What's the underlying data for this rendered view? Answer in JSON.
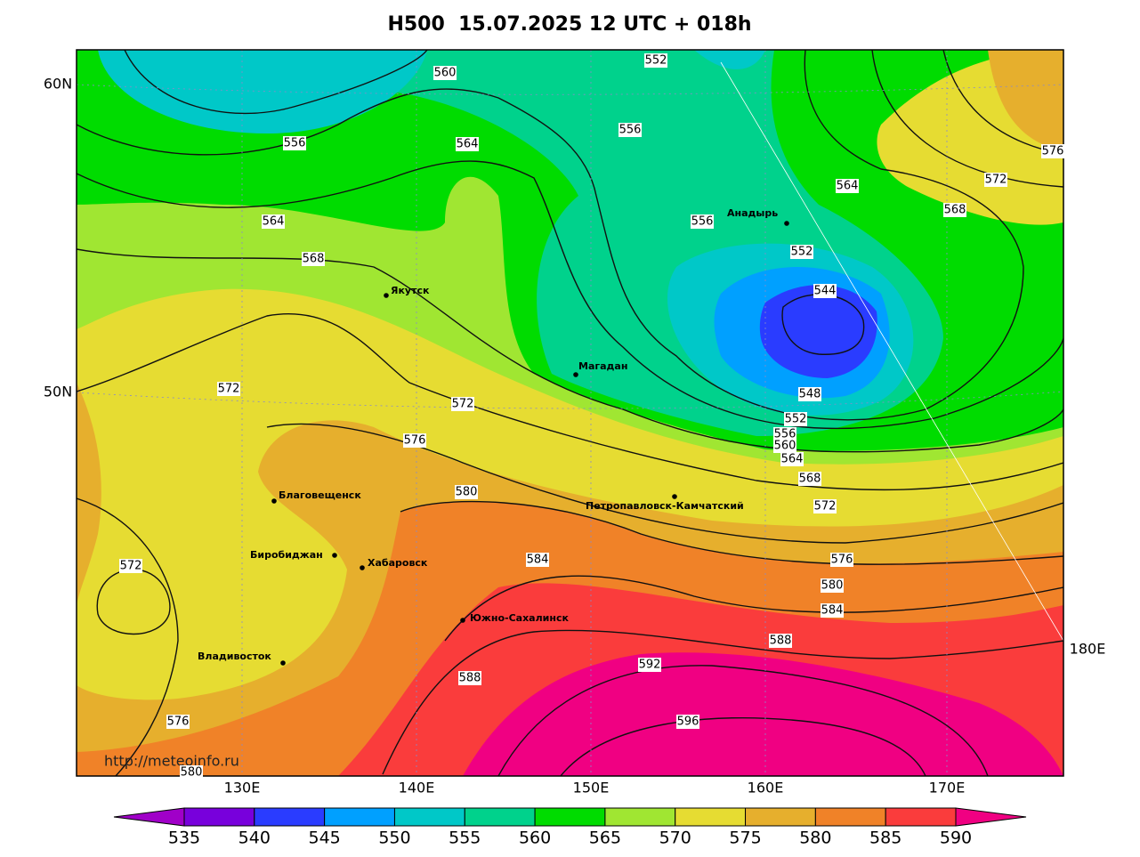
{
  "title": "H500  15.07.2025 12 UTC + 018h",
  "watermark": "http://meteoinfo.ru",
  "lat_labels": [
    "60N",
    "50N"
  ],
  "lon_labels": [
    "130E",
    "140E",
    "150E",
    "160E",
    "170E",
    "180E"
  ],
  "cities": [
    "Анадырь",
    "Якутск",
    "Магадан",
    "Благовещенск",
    "Петропавловск-Камчатский",
    "Биробиджан",
    "Хабаровск",
    "Южно-Сахалинск",
    "Владивосток"
  ],
  "contour_labels": [
    560,
    552,
    556,
    564,
    556,
    564,
    568,
    556,
    552,
    544,
    548,
    552,
    556,
    560,
    564,
    568,
    572,
    576,
    580,
    584,
    588,
    592,
    596,
    572,
    572,
    576,
    580,
    584,
    588,
    576,
    572,
    576,
    572,
    568,
    564,
    580
  ],
  "colorbar": {
    "ticks": [
      535,
      540,
      545,
      550,
      555,
      560,
      565,
      570,
      575,
      580,
      585,
      590
    ],
    "colors": [
      "#a000c8",
      "#7800dc",
      "#2a3cff",
      "#00a0ff",
      "#00c8c8",
      "#00d28c",
      "#00dc00",
      "#a0e632",
      "#e6dc32",
      "#e6af2d",
      "#f08228",
      "#fa3c3c",
      "#f00082"
    ]
  }
}
